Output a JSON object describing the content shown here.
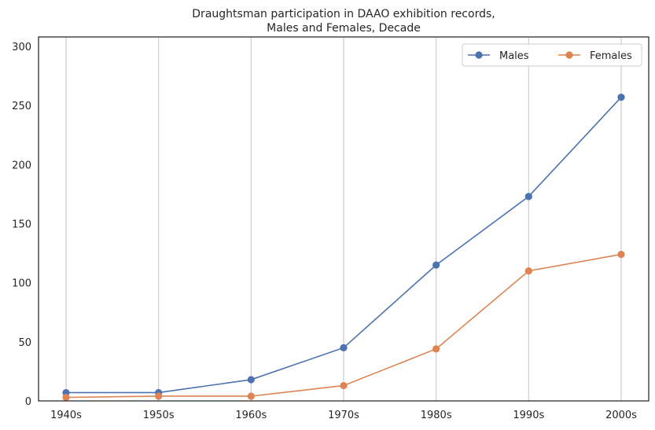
{
  "chart_data": {
    "type": "line",
    "title_lines": [
      "Draughtsman participation in DAAO exhibition records,",
      "Males and Females, Decade"
    ],
    "xlabel": "",
    "ylabel": "",
    "categories": [
      "1940s",
      "1950s",
      "1960s",
      "1970s",
      "1980s",
      "1990s",
      "2000s"
    ],
    "series": [
      {
        "name": "Males",
        "color": "#4c72b0",
        "values": [
          7,
          7,
          18,
          45,
          115,
          173,
          257
        ]
      },
      {
        "name": "Females",
        "color": "#dd8452",
        "values": [
          3,
          4,
          4,
          13,
          44,
          110,
          124
        ]
      }
    ],
    "ylim": [
      0,
      308
    ],
    "yticks": [
      0,
      50,
      100,
      150,
      200,
      250,
      300
    ],
    "grid": "vertical",
    "legend": "top-right, two columns",
    "marker": "circle"
  }
}
